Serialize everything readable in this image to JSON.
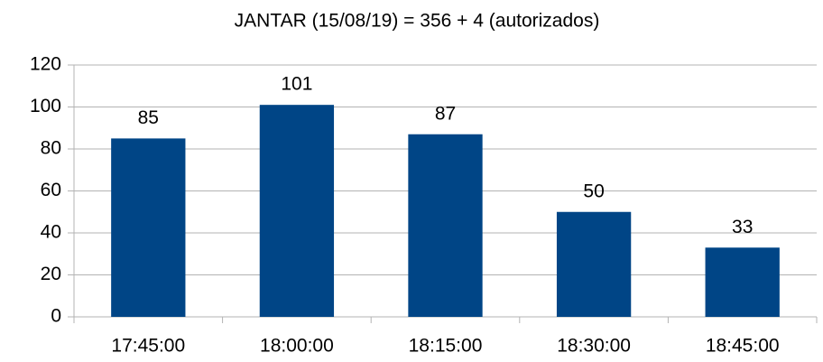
{
  "chart_data": {
    "type": "bar",
    "title": "JANTAR (15/08/19) = 356 + 4 (autorizados)",
    "categories": [
      "17:45:00",
      "18:00:00",
      "18:15:00",
      "18:30:00",
      "18:45:00"
    ],
    "values": [
      85,
      101,
      87,
      50,
      33
    ],
    "color": "#004586",
    "ylim": [
      0,
      120
    ],
    "yticks": [
      0,
      20,
      40,
      60,
      80,
      100,
      120
    ],
    "grid": true
  }
}
